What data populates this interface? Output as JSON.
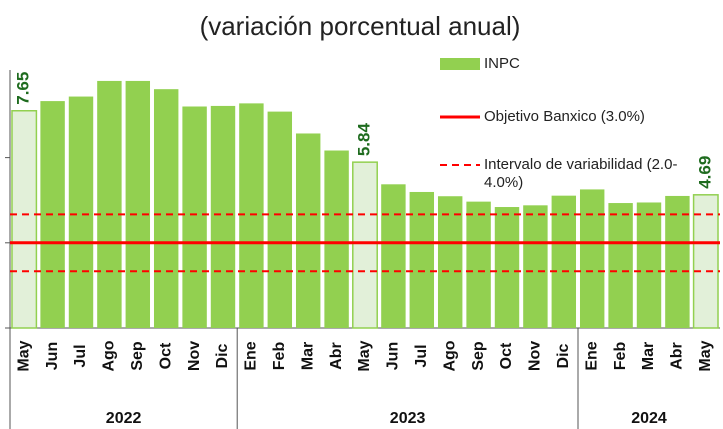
{
  "chart_data": {
    "type": "bar",
    "title": "(variación porcentual anual)",
    "categories": [
      "May",
      "Jun",
      "Jul",
      "Ago",
      "Sep",
      "Oct",
      "Nov",
      "Dic",
      "Ene",
      "Feb",
      "Mar",
      "Abr",
      "May",
      "Jun",
      "Jul",
      "Ago",
      "Sep",
      "Oct",
      "Nov",
      "Dic",
      "Ene",
      "Feb",
      "Mar",
      "Abr",
      "May"
    ],
    "groups": [
      {
        "label": "2022",
        "count": 8
      },
      {
        "label": "2023",
        "count": 12
      },
      {
        "label": "2024",
        "count": 5
      }
    ],
    "series": [
      {
        "name": "INPC",
        "color": "#92d050",
        "values": [
          7.65,
          7.99,
          8.15,
          8.7,
          8.7,
          8.41,
          7.8,
          7.82,
          7.91,
          7.62,
          6.85,
          6.25,
          5.84,
          5.06,
          4.79,
          4.64,
          4.45,
          4.26,
          4.32,
          4.66,
          4.88,
          4.4,
          4.42,
          4.65,
          4.69
        ]
      }
    ],
    "highlighted": [
      0,
      12,
      24
    ],
    "highlight_color": "#e2f0d9",
    "reference_lines": [
      {
        "name": "Objetivo Banxico (3.0%)",
        "values": [
          3
        ],
        "color": "#ff0000",
        "dashed": false
      },
      {
        "name": "Intervalo de variabilidad (2.0-4.0%)",
        "values": [
          2,
          4
        ],
        "color": "#ff0000",
        "dashed": true
      }
    ],
    "ylim": [
      0,
      11.55
    ],
    "yticks": [
      0,
      3,
      6
    ]
  }
}
